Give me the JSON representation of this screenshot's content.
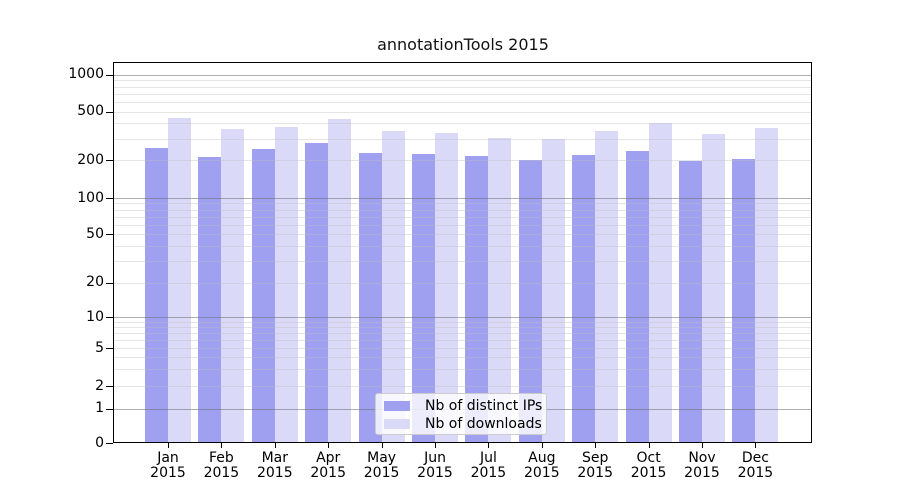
{
  "chart_data": {
    "type": "bar",
    "title": "annotationTools 2015",
    "categories": [
      "Jan",
      "Feb",
      "Mar",
      "Apr",
      "May",
      "Jun",
      "Jul",
      "Aug",
      "Sep",
      "Oct",
      "Nov",
      "Dec"
    ],
    "year_label": "2015",
    "series": [
      {
        "name": "Nb of distinct IPs",
        "color": "#a0a0f0",
        "values": [
          250,
          210,
          245,
          275,
          230,
          225,
          215,
          200,
          220,
          235,
          195,
          205
        ]
      },
      {
        "name": "Nb of downloads",
        "color": "#dadaf8",
        "values": [
          445,
          360,
          375,
          430,
          345,
          335,
          305,
          295,
          345,
          400,
          325,
          365
        ]
      }
    ],
    "xlabel": "",
    "ylabel": "",
    "yaxis": {
      "scale": "log-like (linear below 1, compressed log above)",
      "ticks": [
        0,
        1,
        2,
        5,
        10,
        20,
        50,
        100,
        200,
        500,
        1000
      ],
      "ylim": [
        0,
        1250
      ]
    },
    "grid": {
      "major": "on",
      "minor": "on"
    },
    "legend": {
      "position": "lower center",
      "entries": [
        "Nb of distinct IPs",
        "Nb of downloads"
      ]
    }
  }
}
